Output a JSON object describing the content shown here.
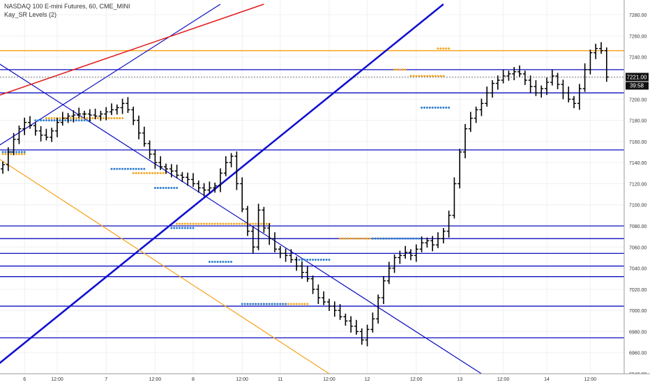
{
  "header": {
    "symbol": "NASDAQ 100 E-mini Futures, 60, CME_MINI",
    "indicator": "Kay_SR Levels (2)"
  },
  "price_badge": {
    "price": "7221.00",
    "countdown": "39:58"
  },
  "colors": {
    "background": "#ffffff",
    "grid": "#eef0f3",
    "bars": "#000000",
    "sr_lines": "#0d0dbf",
    "trend_thick": "#1010d0",
    "resistance_red": "#e01b1b",
    "orange": "#f7a21b",
    "dots_orange": "#f5a623",
    "dots_blue": "#2f7fd1",
    "price_badge": "#111111",
    "axis_text": "#333333"
  },
  "chart_data": {
    "type": "ohlc",
    "title": "NASDAQ 100 E-mini Futures, 60, CME_MINI",
    "xlabel": "",
    "ylabel": "",
    "ylim": [
      6940,
      7290
    ],
    "grid": true,
    "legend": "none",
    "last_price": 7221,
    "y_ticks": [
      6940,
      6960,
      6980,
      7000,
      7020,
      7040,
      7060,
      7080,
      7100,
      7120,
      7140,
      7160,
      7180,
      7200,
      7220,
      7240,
      7260,
      7280
    ],
    "x_ticks": [
      {
        "label": "6",
        "t": 4
      },
      {
        "label": "12:00",
        "t": 10
      },
      {
        "label": "7",
        "t": 19
      },
      {
        "label": "12:00",
        "t": 28
      },
      {
        "label": "8",
        "t": 35
      },
      {
        "label": "12:00",
        "t": 44
      },
      {
        "label": "11",
        "t": 51
      },
      {
        "label": "12:00",
        "t": 60
      },
      {
        "label": "12",
        "t": 67
      },
      {
        "label": "12:00",
        "t": 76
      },
      {
        "label": "13",
        "t": 84
      },
      {
        "label": "12:00",
        "t": 92
      },
      {
        "label": "14",
        "t": 100
      },
      {
        "label": "12:00",
        "t": 108
      }
    ],
    "close_values": [
      7138,
      7150,
      7162,
      7172,
      7178,
      7175,
      7170,
      7166,
      7164,
      7170,
      7178,
      7182,
      7184,
      7185,
      7186,
      7186,
      7185,
      7184,
      7186,
      7188,
      7190,
      7192,
      7196,
      7190,
      7180,
      7168,
      7158,
      7148,
      7140,
      7136,
      7134,
      7132,
      7128,
      7126,
      7124,
      7120,
      7116,
      7114,
      7116,
      7118,
      7130,
      7140,
      7146,
      7120,
      7096,
      7075,
      7060,
      7095,
      7078,
      7068,
      7058,
      7054,
      7052,
      7048,
      7042,
      7036,
      7030,
      7020,
      7012,
      7008,
      7004,
      7000,
      6994,
      6990,
      6985,
      6980,
      6972,
      6982,
      6992,
      7012,
      7028,
      7040,
      7050,
      7052,
      7055,
      7052,
      7058,
      7064,
      7066,
      7062,
      7068,
      7075,
      7090,
      7120,
      7150,
      7172,
      7182,
      7190,
      7196,
      7206,
      7215,
      7218,
      7222,
      7224,
      7226,
      7224,
      7218,
      7212,
      7206,
      7210,
      7216,
      7222,
      7214,
      7206,
      7200,
      7196,
      7210,
      7228,
      7244,
      7248,
      7246,
      7221
    ],
    "horizontal_levels": [
      7228,
      7246,
      7206,
      7152,
      7080,
      7068,
      7054,
      7042,
      7032,
      7004,
      6974
    ],
    "trendlines": [
      {
        "color": "blue_thick",
        "from": [
          -3,
          6940
        ],
        "to": [
          81,
          7290
        ]
      },
      {
        "color": "blue",
        "from": [
          -5,
          7248
        ],
        "to": [
          88,
          6940
        ]
      },
      {
        "color": "blue",
        "from": [
          -5,
          7142
        ],
        "to": [
          40,
          7290
        ]
      },
      {
        "color": "red",
        "from": [
          -5,
          7196
        ],
        "to": [
          48,
          7290
        ]
      },
      {
        "color": "orange",
        "from": [
          -5,
          7158
        ],
        "to": [
          60,
          6940
        ]
      }
    ],
    "sr_dots": [
      {
        "color": "orange",
        "level": 7182,
        "t_start": 8,
        "t_end": 22
      },
      {
        "color": "blue",
        "level": 7180,
        "t_start": 6,
        "t_end": 16
      },
      {
        "color": "blue",
        "level": 7150,
        "t_start": 0,
        "t_end": 4
      },
      {
        "color": "orange",
        "level": 7148,
        "t_start": 0,
        "t_end": 4
      },
      {
        "color": "orange",
        "level": 7130,
        "t_start": 24,
        "t_end": 30
      },
      {
        "color": "blue",
        "level": 7134,
        "t_start": 20,
        "t_end": 26
      },
      {
        "color": "blue",
        "level": 7116,
        "t_start": 28,
        "t_end": 32
      },
      {
        "color": "orange",
        "level": 7082,
        "t_start": 32,
        "t_end": 49
      },
      {
        "color": "blue",
        "level": 7078,
        "t_start": 31,
        "t_end": 35
      },
      {
        "color": "blue",
        "level": 7046,
        "t_start": 38,
        "t_end": 42
      },
      {
        "color": "orange",
        "level": 7068,
        "t_start": 62,
        "t_end": 71
      },
      {
        "color": "blue",
        "level": 7068,
        "t_start": 68,
        "t_end": 77
      },
      {
        "color": "blue",
        "level": 7048,
        "t_start": 54,
        "t_end": 60
      },
      {
        "color": "orange",
        "level": 7006,
        "t_start": 45,
        "t_end": 56
      },
      {
        "color": "blue",
        "level": 7006,
        "t_start": 44,
        "t_end": 52
      },
      {
        "color": "orange",
        "level": 7228,
        "t_start": 72,
        "t_end": 74
      },
      {
        "color": "orange",
        "level": 7222,
        "t_start": 75,
        "t_end": 81
      },
      {
        "color": "blue",
        "level": 7192,
        "t_start": 77,
        "t_end": 82
      },
      {
        "color": "orange",
        "level": 7248,
        "t_start": 80,
        "t_end": 82
      }
    ]
  }
}
